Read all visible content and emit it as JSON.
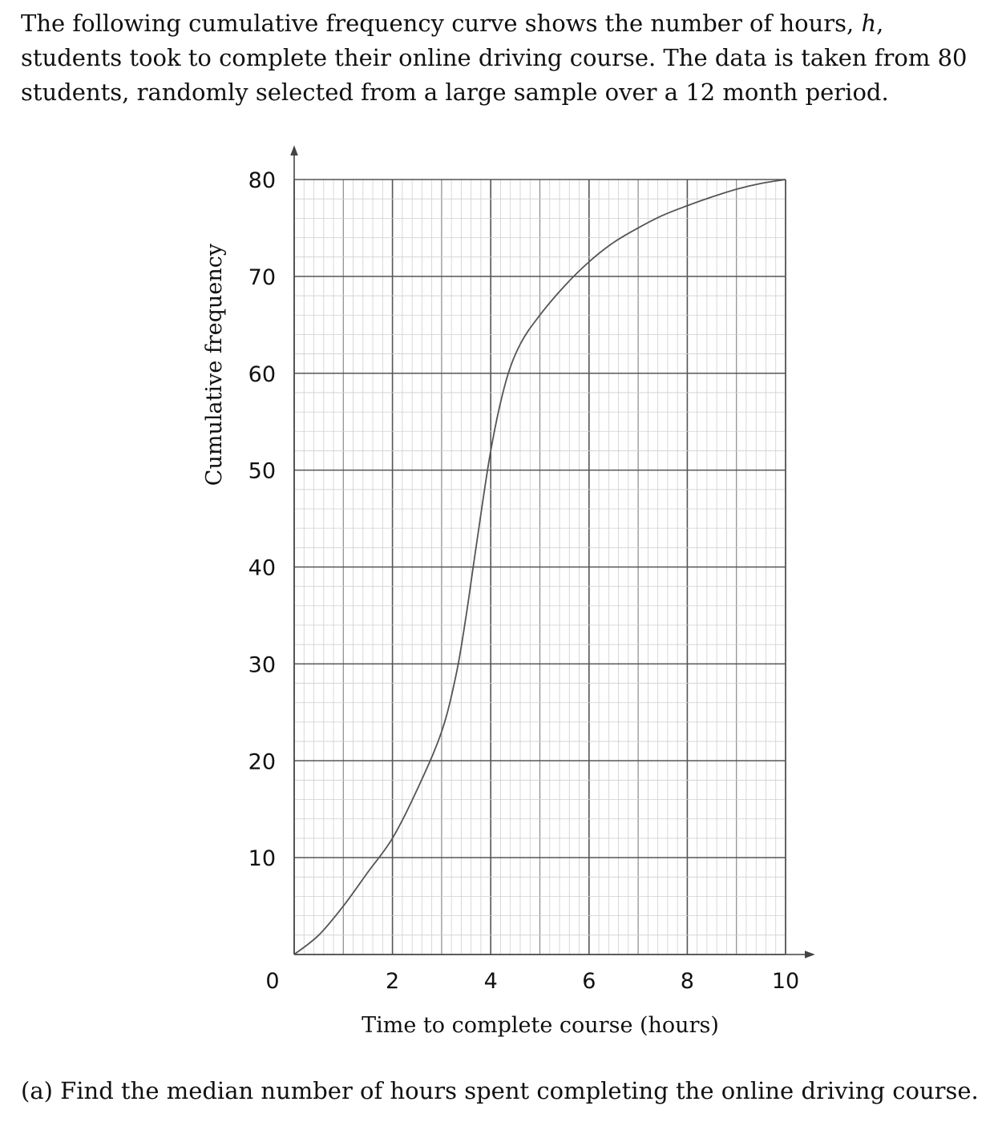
{
  "intro": {
    "part1": "The following cumulative frequency curve shows the number of hours, ",
    "variable": "h",
    "part2": ", students took to complete their online driving course.  The data is taken from 80 students, randomly selected from a large sample over a 12 month period."
  },
  "question": "(a) Find the median number of hours spent completing the online driving course.",
  "chart_data": {
    "type": "line",
    "title": "",
    "xlabel": "Time to complete course (hours)",
    "ylabel": "Cumulative frequency",
    "xlim": [
      0,
      10
    ],
    "ylim": [
      0,
      80
    ],
    "grid": true,
    "x_ticks": [
      0,
      2,
      4,
      6,
      8,
      10
    ],
    "y_ticks": [
      10,
      20,
      30,
      40,
      50,
      60,
      70,
      80
    ],
    "series": [
      {
        "x": [
          0,
          0.5,
          1,
          1.5,
          2,
          2.5,
          3,
          3.3,
          3.5,
          3.7,
          4,
          4.3,
          4.6,
          5,
          5.5,
          6,
          6.5,
          7,
          7.5,
          8,
          8.5,
          9,
          9.5,
          10
        ],
        "y": [
          0,
          2,
          5,
          8.5,
          12,
          17,
          23,
          29,
          35,
          42,
          52,
          59,
          63,
          66,
          69,
          71.5,
          73.5,
          75,
          76.3,
          77.3,
          78.2,
          79,
          79.6,
          80
        ],
        "color": "#555555"
      }
    ]
  }
}
